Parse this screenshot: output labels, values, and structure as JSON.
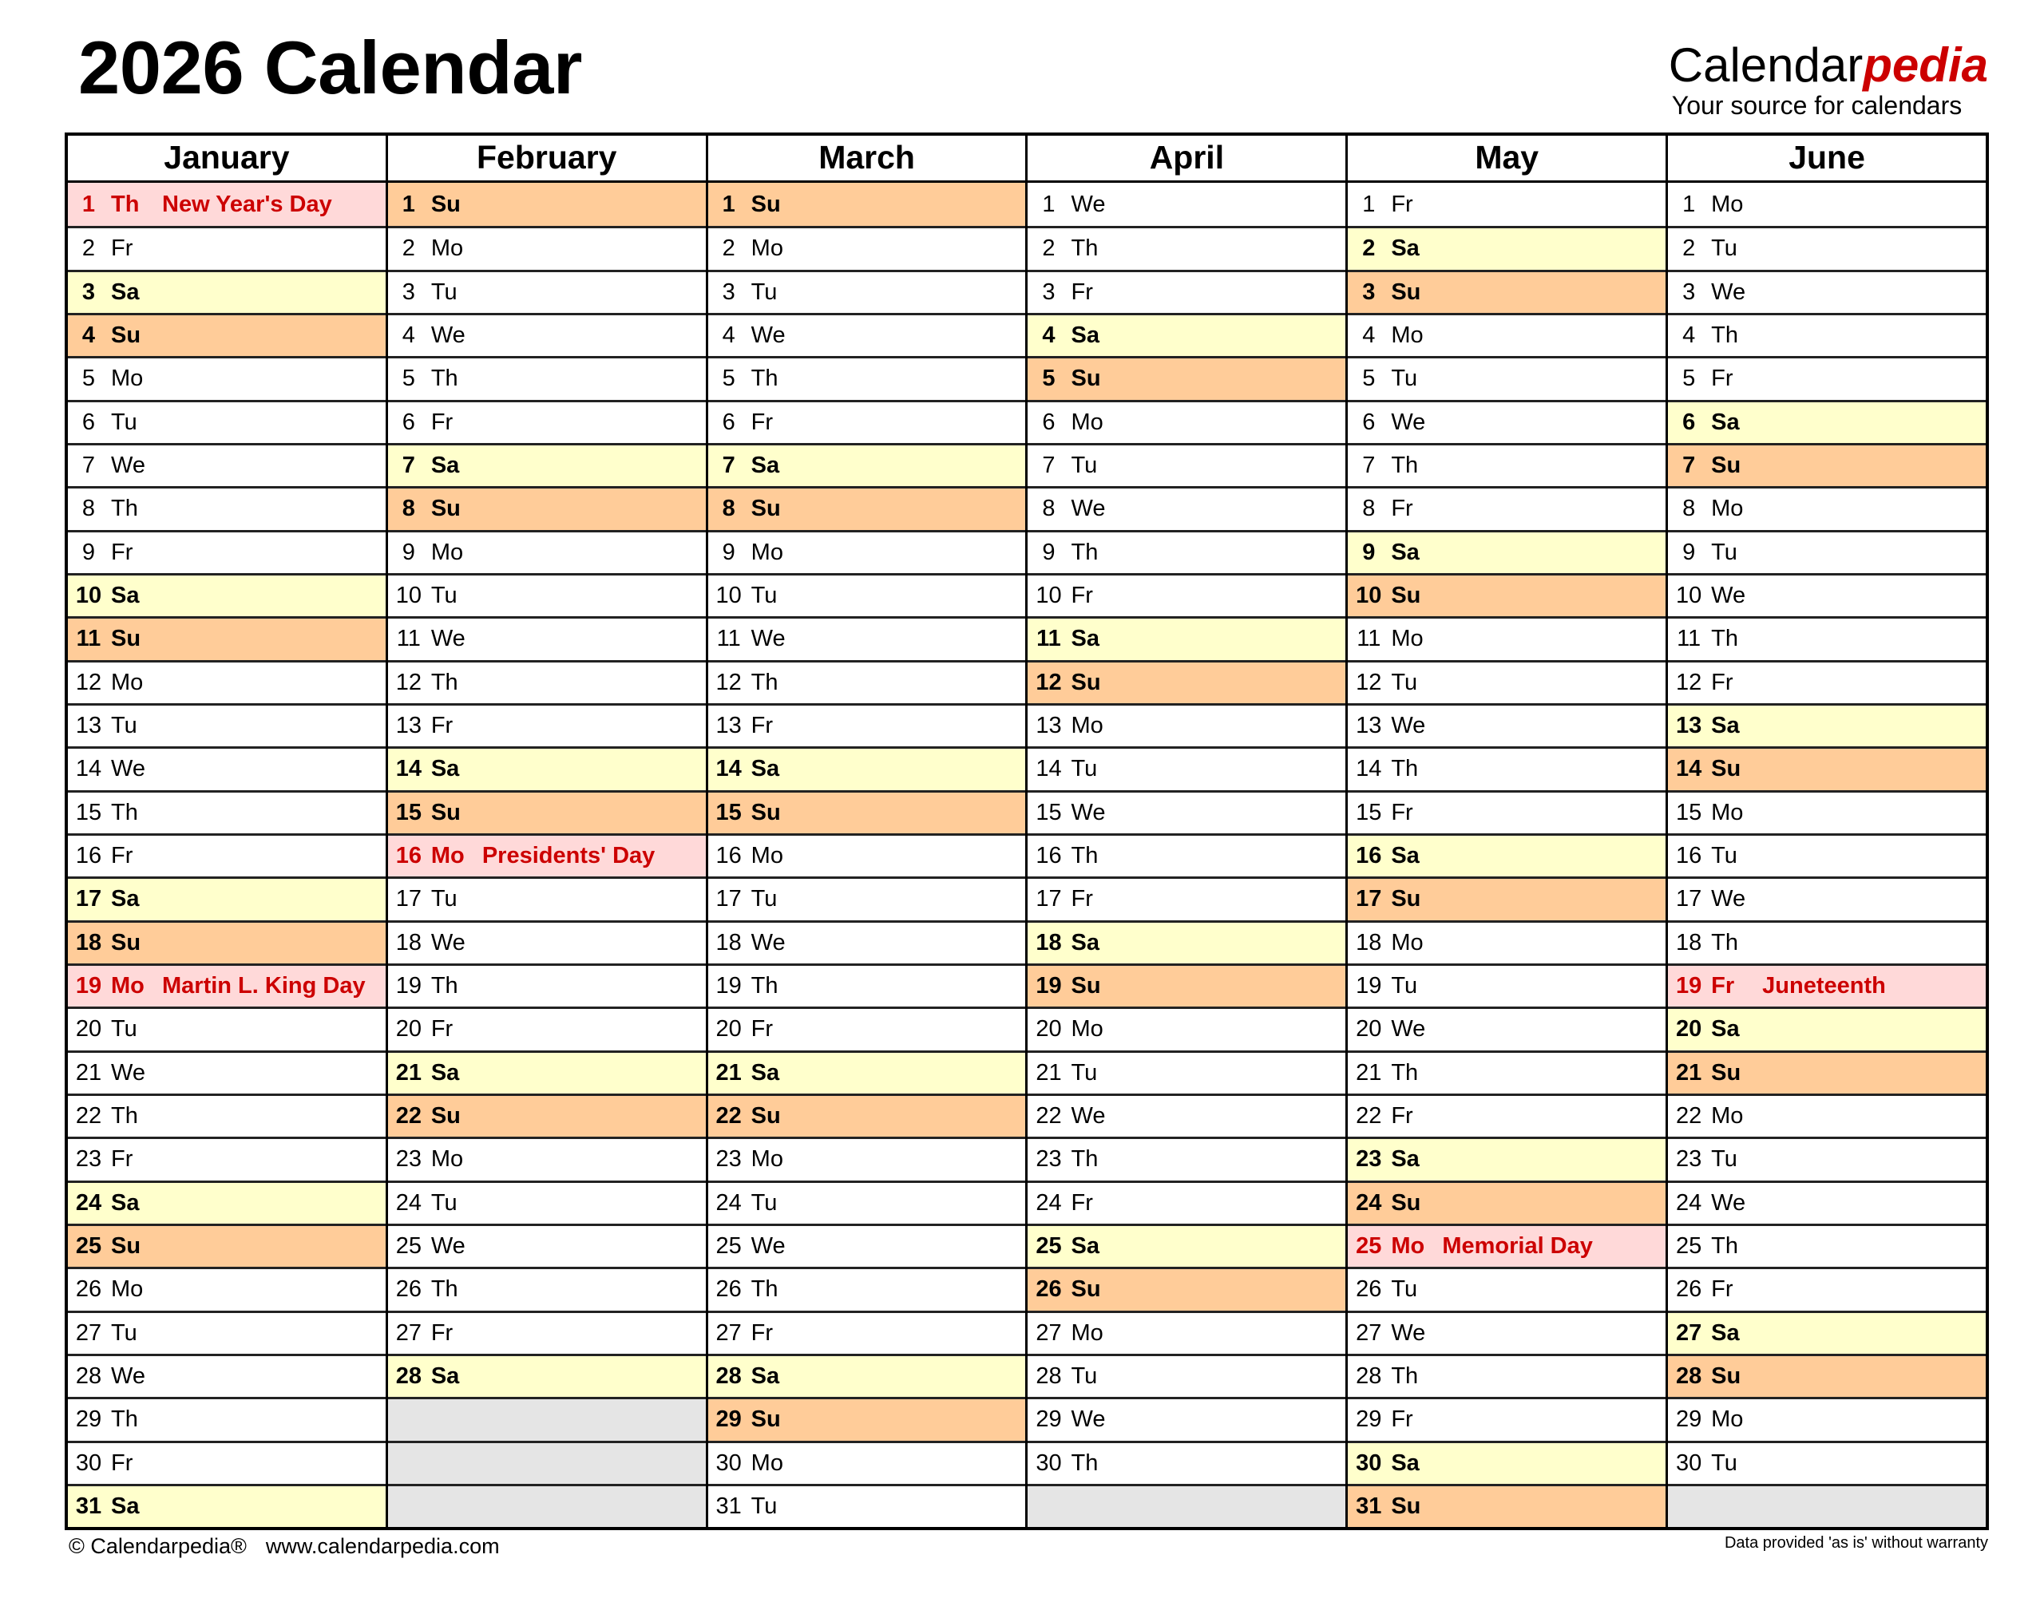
{
  "header": {
    "title": "2026 Calendar",
    "logo_main": "Calendar",
    "logo_accent": "pedia",
    "logo_tagline": "Your source for calendars"
  },
  "colors": {
    "saturday": "#ffffcc",
    "sunday": "#ffcc99",
    "holiday_bg": "#ffd9d9",
    "holiday_text": "#cc0000",
    "empty": "#e5e5e5",
    "brand_accent": "#cc0000"
  },
  "months": [
    {
      "name": "January",
      "days": [
        [
          "1",
          "Th",
          "New Year's Day"
        ],
        [
          "2",
          "Fr"
        ],
        [
          "3",
          "Sa"
        ],
        [
          "4",
          "Su"
        ],
        [
          "5",
          "Mo"
        ],
        [
          "6",
          "Tu"
        ],
        [
          "7",
          "We"
        ],
        [
          "8",
          "Th"
        ],
        [
          "9",
          "Fr"
        ],
        [
          "10",
          "Sa"
        ],
        [
          "11",
          "Su"
        ],
        [
          "12",
          "Mo"
        ],
        [
          "13",
          "Tu"
        ],
        [
          "14",
          "We"
        ],
        [
          "15",
          "Th"
        ],
        [
          "16",
          "Fr"
        ],
        [
          "17",
          "Sa"
        ],
        [
          "18",
          "Su"
        ],
        [
          "19",
          "Mo",
          "Martin L. King Day"
        ],
        [
          "20",
          "Tu"
        ],
        [
          "21",
          "We"
        ],
        [
          "22",
          "Th"
        ],
        [
          "23",
          "Fr"
        ],
        [
          "24",
          "Sa"
        ],
        [
          "25",
          "Su"
        ],
        [
          "26",
          "Mo"
        ],
        [
          "27",
          "Tu"
        ],
        [
          "28",
          "We"
        ],
        [
          "29",
          "Th"
        ],
        [
          "30",
          "Fr"
        ],
        [
          "31",
          "Sa"
        ]
      ]
    },
    {
      "name": "February",
      "days": [
        [
          "1",
          "Su"
        ],
        [
          "2",
          "Mo"
        ],
        [
          "3",
          "Tu"
        ],
        [
          "4",
          "We"
        ],
        [
          "5",
          "Th"
        ],
        [
          "6",
          "Fr"
        ],
        [
          "7",
          "Sa"
        ],
        [
          "8",
          "Su"
        ],
        [
          "9",
          "Mo"
        ],
        [
          "10",
          "Tu"
        ],
        [
          "11",
          "We"
        ],
        [
          "12",
          "Th"
        ],
        [
          "13",
          "Fr"
        ],
        [
          "14",
          "Sa"
        ],
        [
          "15",
          "Su"
        ],
        [
          "16",
          "Mo",
          "Presidents' Day"
        ],
        [
          "17",
          "Tu"
        ],
        [
          "18",
          "We"
        ],
        [
          "19",
          "Th"
        ],
        [
          "20",
          "Fr"
        ],
        [
          "21",
          "Sa"
        ],
        [
          "22",
          "Su"
        ],
        [
          "23",
          "Mo"
        ],
        [
          "24",
          "Tu"
        ],
        [
          "25",
          "We"
        ],
        [
          "26",
          "Th"
        ],
        [
          "27",
          "Fr"
        ],
        [
          "28",
          "Sa"
        ]
      ]
    },
    {
      "name": "March",
      "days": [
        [
          "1",
          "Su"
        ],
        [
          "2",
          "Mo"
        ],
        [
          "3",
          "Tu"
        ],
        [
          "4",
          "We"
        ],
        [
          "5",
          "Th"
        ],
        [
          "6",
          "Fr"
        ],
        [
          "7",
          "Sa"
        ],
        [
          "8",
          "Su"
        ],
        [
          "9",
          "Mo"
        ],
        [
          "10",
          "Tu"
        ],
        [
          "11",
          "We"
        ],
        [
          "12",
          "Th"
        ],
        [
          "13",
          "Fr"
        ],
        [
          "14",
          "Sa"
        ],
        [
          "15",
          "Su"
        ],
        [
          "16",
          "Mo"
        ],
        [
          "17",
          "Tu"
        ],
        [
          "18",
          "We"
        ],
        [
          "19",
          "Th"
        ],
        [
          "20",
          "Fr"
        ],
        [
          "21",
          "Sa"
        ],
        [
          "22",
          "Su"
        ],
        [
          "23",
          "Mo"
        ],
        [
          "24",
          "Tu"
        ],
        [
          "25",
          "We"
        ],
        [
          "26",
          "Th"
        ],
        [
          "27",
          "Fr"
        ],
        [
          "28",
          "Sa"
        ],
        [
          "29",
          "Su"
        ],
        [
          "30",
          "Mo"
        ],
        [
          "31",
          "Tu"
        ]
      ]
    },
    {
      "name": "April",
      "days": [
        [
          "1",
          "We"
        ],
        [
          "2",
          "Th"
        ],
        [
          "3",
          "Fr"
        ],
        [
          "4",
          "Sa"
        ],
        [
          "5",
          "Su"
        ],
        [
          "6",
          "Mo"
        ],
        [
          "7",
          "Tu"
        ],
        [
          "8",
          "We"
        ],
        [
          "9",
          "Th"
        ],
        [
          "10",
          "Fr"
        ],
        [
          "11",
          "Sa"
        ],
        [
          "12",
          "Su"
        ],
        [
          "13",
          "Mo"
        ],
        [
          "14",
          "Tu"
        ],
        [
          "15",
          "We"
        ],
        [
          "16",
          "Th"
        ],
        [
          "17",
          "Fr"
        ],
        [
          "18",
          "Sa"
        ],
        [
          "19",
          "Su"
        ],
        [
          "20",
          "Mo"
        ],
        [
          "21",
          "Tu"
        ],
        [
          "22",
          "We"
        ],
        [
          "23",
          "Th"
        ],
        [
          "24",
          "Fr"
        ],
        [
          "25",
          "Sa"
        ],
        [
          "26",
          "Su"
        ],
        [
          "27",
          "Mo"
        ],
        [
          "28",
          "Tu"
        ],
        [
          "29",
          "We"
        ],
        [
          "30",
          "Th"
        ]
      ]
    },
    {
      "name": "May",
      "days": [
        [
          "1",
          "Fr"
        ],
        [
          "2",
          "Sa"
        ],
        [
          "3",
          "Su"
        ],
        [
          "4",
          "Mo"
        ],
        [
          "5",
          "Tu"
        ],
        [
          "6",
          "We"
        ],
        [
          "7",
          "Th"
        ],
        [
          "8",
          "Fr"
        ],
        [
          "9",
          "Sa"
        ],
        [
          "10",
          "Su"
        ],
        [
          "11",
          "Mo"
        ],
        [
          "12",
          "Tu"
        ],
        [
          "13",
          "We"
        ],
        [
          "14",
          "Th"
        ],
        [
          "15",
          "Fr"
        ],
        [
          "16",
          "Sa"
        ],
        [
          "17",
          "Su"
        ],
        [
          "18",
          "Mo"
        ],
        [
          "19",
          "Tu"
        ],
        [
          "20",
          "We"
        ],
        [
          "21",
          "Th"
        ],
        [
          "22",
          "Fr"
        ],
        [
          "23",
          "Sa"
        ],
        [
          "24",
          "Su"
        ],
        [
          "25",
          "Mo",
          "Memorial Day"
        ],
        [
          "26",
          "Tu"
        ],
        [
          "27",
          "We"
        ],
        [
          "28",
          "Th"
        ],
        [
          "29",
          "Fr"
        ],
        [
          "30",
          "Sa"
        ],
        [
          "31",
          "Su"
        ]
      ]
    },
    {
      "name": "June",
      "days": [
        [
          "1",
          "Mo"
        ],
        [
          "2",
          "Tu"
        ],
        [
          "3",
          "We"
        ],
        [
          "4",
          "Th"
        ],
        [
          "5",
          "Fr"
        ],
        [
          "6",
          "Sa"
        ],
        [
          "7",
          "Su"
        ],
        [
          "8",
          "Mo"
        ],
        [
          "9",
          "Tu"
        ],
        [
          "10",
          "We"
        ],
        [
          "11",
          "Th"
        ],
        [
          "12",
          "Fr"
        ],
        [
          "13",
          "Sa"
        ],
        [
          "14",
          "Su"
        ],
        [
          "15",
          "Mo"
        ],
        [
          "16",
          "Tu"
        ],
        [
          "17",
          "We"
        ],
        [
          "18",
          "Th"
        ],
        [
          "19",
          "Fr",
          "Juneteenth"
        ],
        [
          "20",
          "Sa"
        ],
        [
          "21",
          "Su"
        ],
        [
          "22",
          "Mo"
        ],
        [
          "23",
          "Tu"
        ],
        [
          "24",
          "We"
        ],
        [
          "25",
          "Th"
        ],
        [
          "26",
          "Fr"
        ],
        [
          "27",
          "Sa"
        ],
        [
          "28",
          "Su"
        ],
        [
          "29",
          "Mo"
        ],
        [
          "30",
          "Tu"
        ]
      ]
    }
  ],
  "footer": {
    "copyright": "© Calendarpedia®",
    "website": "www.calendarpedia.com",
    "disclaimer": "Data provided 'as is' without warranty"
  }
}
